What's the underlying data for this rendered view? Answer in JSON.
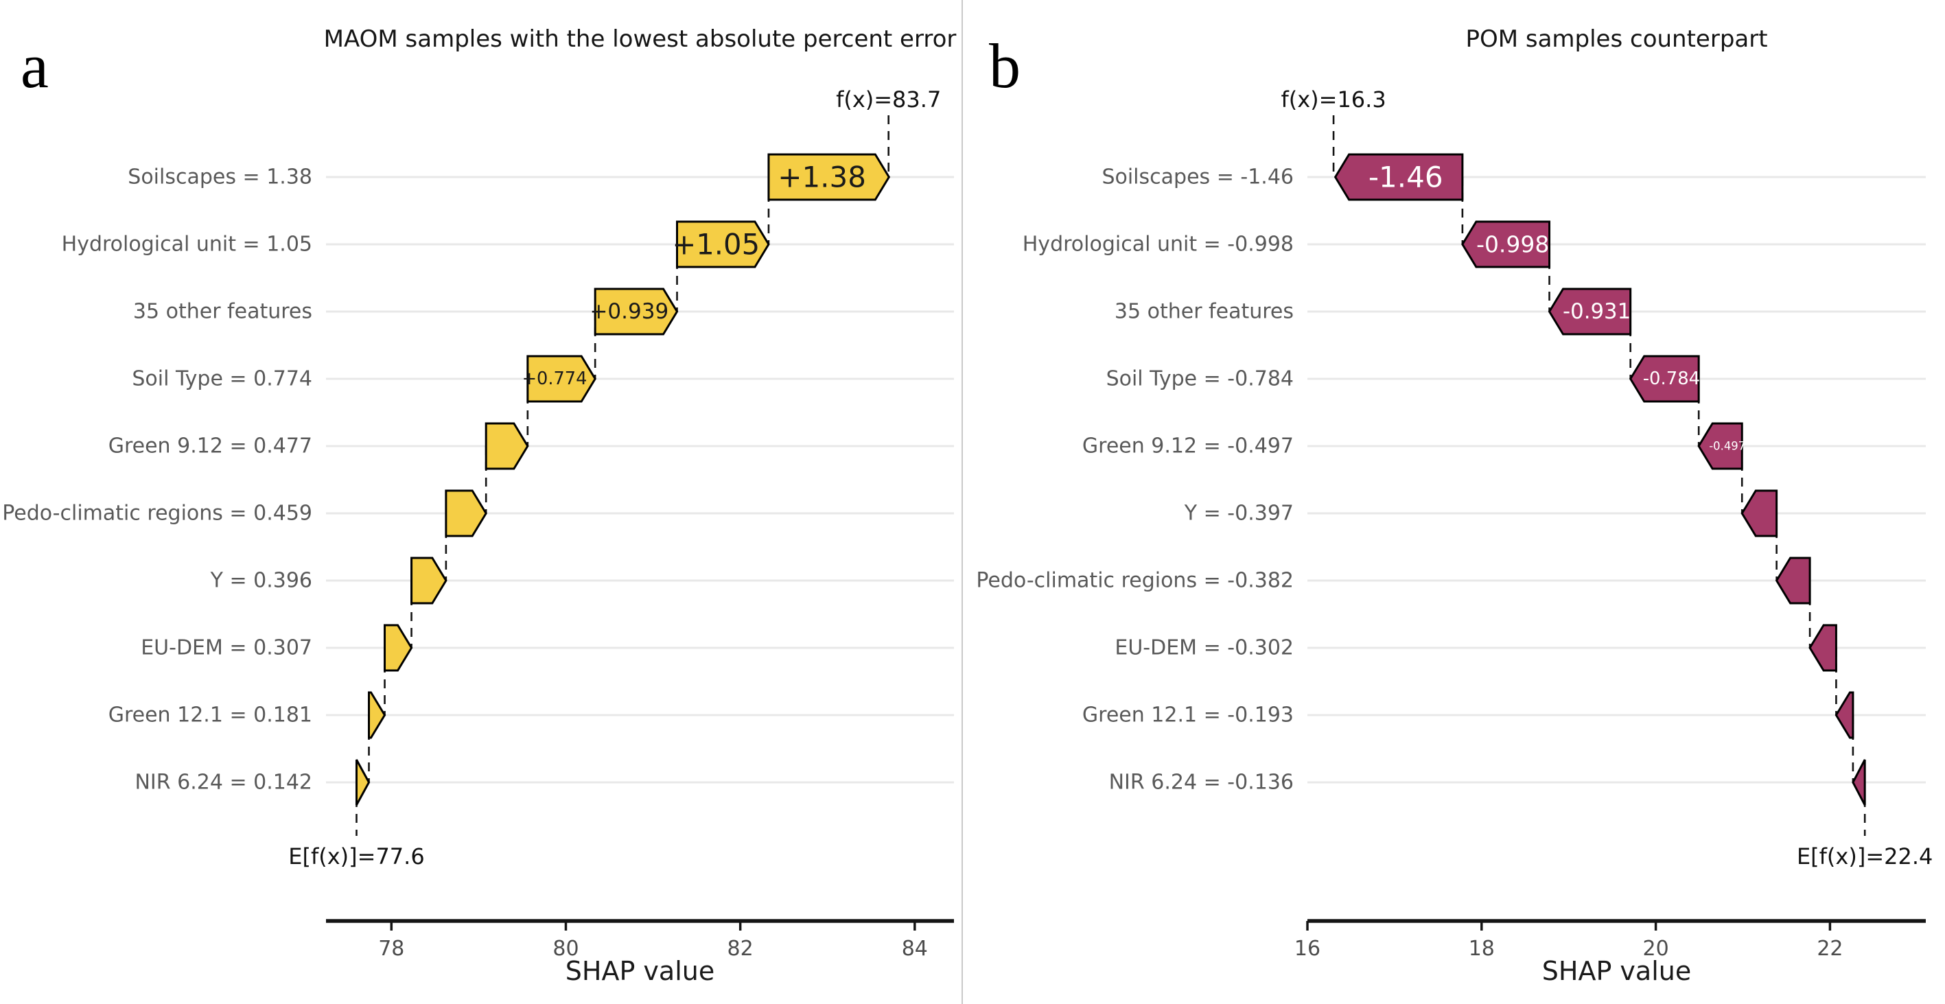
{
  "figure": {
    "background": "#ffffff",
    "divider_color": "#c9c9c9",
    "gridline_color": "#e8e8e8",
    "axis_color": "#151515",
    "connector_color": "#141414",
    "feature_label_color": "#595959",
    "tick_label_color": "#4c4c4c"
  },
  "chart_data": [
    {
      "type": "bar",
      "subtype": "shap-waterfall",
      "panel_letter": "a",
      "title": "MAOM samples with the lowest absolute percent error",
      "xlabel": "SHAP value",
      "x_ticks": [
        78,
        80,
        82,
        84
      ],
      "xlim": [
        77.25,
        84.45
      ],
      "base_value": 77.6,
      "fx_value": 83.7,
      "fx_label": "f(x)=83.7",
      "efx_label": "E[f(x)]=77.6",
      "bar_color": "#f5ce45",
      "bar_edge_color": "#000000",
      "bar_label_color": "#1a1a1a",
      "legend_position": "none",
      "grid": "horizontal",
      "features": [
        {
          "label": "Soilscapes = 1.38",
          "value": 1.38,
          "bar_label": "+1.38"
        },
        {
          "label": "Hydrological unit = 1.05",
          "value": 1.05,
          "bar_label": "+1.05"
        },
        {
          "label": "35 other features",
          "value": 0.939,
          "bar_label": "+0.939"
        },
        {
          "label": "Soil Type = 0.774",
          "value": 0.774,
          "bar_label": "+0.774"
        },
        {
          "label": "Green 9.12 = 0.477",
          "value": 0.477,
          "bar_label": ""
        },
        {
          "label": "Pedo-climatic regions = 0.459",
          "value": 0.459,
          "bar_label": ""
        },
        {
          "label": "Y = 0.396",
          "value": 0.396,
          "bar_label": ""
        },
        {
          "label": "EU-DEM = 0.307",
          "value": 0.307,
          "bar_label": ""
        },
        {
          "label": "Green 12.1 = 0.181",
          "value": 0.181,
          "bar_label": ""
        },
        {
          "label": "NIR 6.24 = 0.142",
          "value": 0.142,
          "bar_label": ""
        }
      ]
    },
    {
      "type": "bar",
      "subtype": "shap-waterfall",
      "panel_letter": "b",
      "title": "POM samples counterpart",
      "xlabel": "SHAP value",
      "x_ticks": [
        16,
        18,
        20,
        22
      ],
      "xlim": [
        16.0,
        23.1
      ],
      "base_value": 22.4,
      "fx_value": 16.3,
      "fx_label": "f(x)=16.3",
      "efx_label": "E[f(x)]=22.4",
      "bar_color": "#a53a68",
      "bar_edge_color": "#000000",
      "bar_label_color": "#ffffff",
      "legend_position": "none",
      "grid": "horizontal",
      "features": [
        {
          "label": "Soilscapes = -1.46",
          "value": -1.46,
          "bar_label": "-1.46"
        },
        {
          "label": "Hydrological unit = -0.998",
          "value": -0.998,
          "bar_label": "-0.998"
        },
        {
          "label": "35 other features",
          "value": -0.931,
          "bar_label": "-0.931"
        },
        {
          "label": "Soil Type = -0.784",
          "value": -0.784,
          "bar_label": "-0.784"
        },
        {
          "label": "Green 9.12 = -0.497",
          "value": -0.497,
          "bar_label": "-0.497"
        },
        {
          "label": "Y = -0.397",
          "value": -0.397,
          "bar_label": ""
        },
        {
          "label": "Pedo-climatic regions = -0.382",
          "value": -0.382,
          "bar_label": ""
        },
        {
          "label": "EU-DEM = -0.302",
          "value": -0.302,
          "bar_label": ""
        },
        {
          "label": "Green 12.1 = -0.193",
          "value": -0.193,
          "bar_label": ""
        },
        {
          "label": "NIR 6.24 = -0.136",
          "value": -0.136,
          "bar_label": ""
        }
      ]
    }
  ]
}
